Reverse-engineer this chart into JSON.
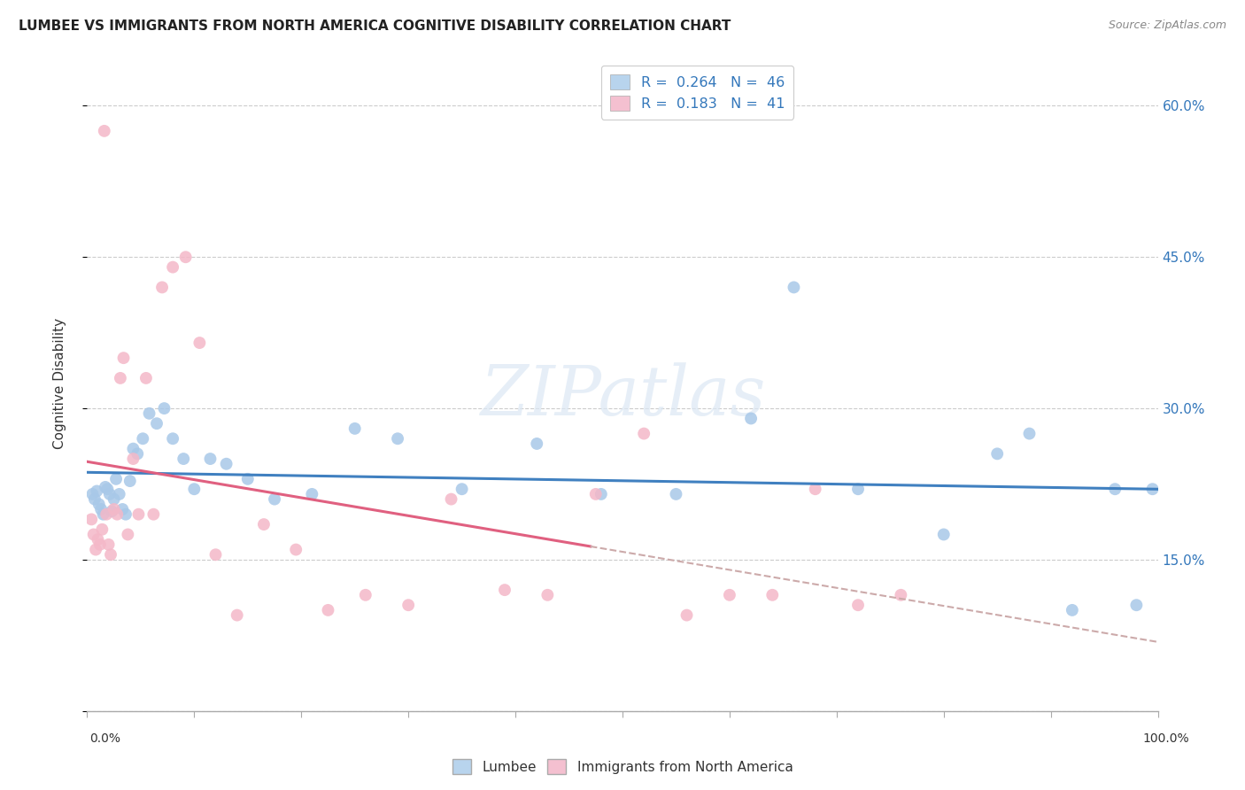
{
  "title": "LUMBEE VS IMMIGRANTS FROM NORTH AMERICA COGNITIVE DISABILITY CORRELATION CHART",
  "source": "Source: ZipAtlas.com",
  "ylabel": "Cognitive Disability",
  "yticks": [
    0.0,
    0.15,
    0.3,
    0.45,
    0.6
  ],
  "xlim": [
    0.0,
    1.0
  ],
  "ylim": [
    0.0,
    0.65
  ],
  "blue_scatter": "#a8c8e8",
  "pink_scatter": "#f4b8c8",
  "line_blue": "#4080c0",
  "line_pink": "#e06080",
  "line_gray_dash": "#ccbbbb",
  "watermark_color": "#dce8f4",
  "lumbee_x": [
    0.005,
    0.007,
    0.009,
    0.011,
    0.013,
    0.015,
    0.017,
    0.019,
    0.021,
    0.023,
    0.025,
    0.027,
    0.03,
    0.033,
    0.036,
    0.04,
    0.043,
    0.047,
    0.052,
    0.058,
    0.065,
    0.072,
    0.08,
    0.09,
    0.1,
    0.115,
    0.13,
    0.15,
    0.175,
    0.21,
    0.25,
    0.29,
    0.35,
    0.42,
    0.48,
    0.55,
    0.62,
    0.66,
    0.72,
    0.8,
    0.85,
    0.88,
    0.92,
    0.96,
    0.98,
    0.995
  ],
  "lumbee_y": [
    0.215,
    0.21,
    0.218,
    0.205,
    0.2,
    0.195,
    0.222,
    0.22,
    0.215,
    0.198,
    0.21,
    0.23,
    0.215,
    0.2,
    0.195,
    0.228,
    0.26,
    0.255,
    0.27,
    0.295,
    0.285,
    0.3,
    0.27,
    0.25,
    0.22,
    0.25,
    0.245,
    0.23,
    0.21,
    0.215,
    0.28,
    0.27,
    0.22,
    0.265,
    0.215,
    0.215,
    0.29,
    0.42,
    0.22,
    0.175,
    0.255,
    0.275,
    0.1,
    0.22,
    0.105,
    0.22
  ],
  "immigrants_x": [
    0.004,
    0.006,
    0.008,
    0.01,
    0.012,
    0.014,
    0.016,
    0.018,
    0.02,
    0.022,
    0.025,
    0.028,
    0.031,
    0.034,
    0.038,
    0.043,
    0.048,
    0.055,
    0.062,
    0.07,
    0.08,
    0.092,
    0.105,
    0.12,
    0.14,
    0.165,
    0.195,
    0.225,
    0.26,
    0.3,
    0.34,
    0.39,
    0.43,
    0.475,
    0.52,
    0.56,
    0.6,
    0.64,
    0.68,
    0.72,
    0.76
  ],
  "immigrants_y": [
    0.19,
    0.175,
    0.16,
    0.17,
    0.165,
    0.18,
    0.575,
    0.195,
    0.165,
    0.155,
    0.2,
    0.195,
    0.33,
    0.35,
    0.175,
    0.25,
    0.195,
    0.33,
    0.195,
    0.42,
    0.44,
    0.45,
    0.365,
    0.155,
    0.095,
    0.185,
    0.16,
    0.1,
    0.115,
    0.105,
    0.21,
    0.12,
    0.115,
    0.215,
    0.275,
    0.095,
    0.115,
    0.115,
    0.22,
    0.105,
    0.115
  ],
  "blue_fill_legend": "#b8d4ed",
  "pink_fill_legend": "#f4c0d0"
}
